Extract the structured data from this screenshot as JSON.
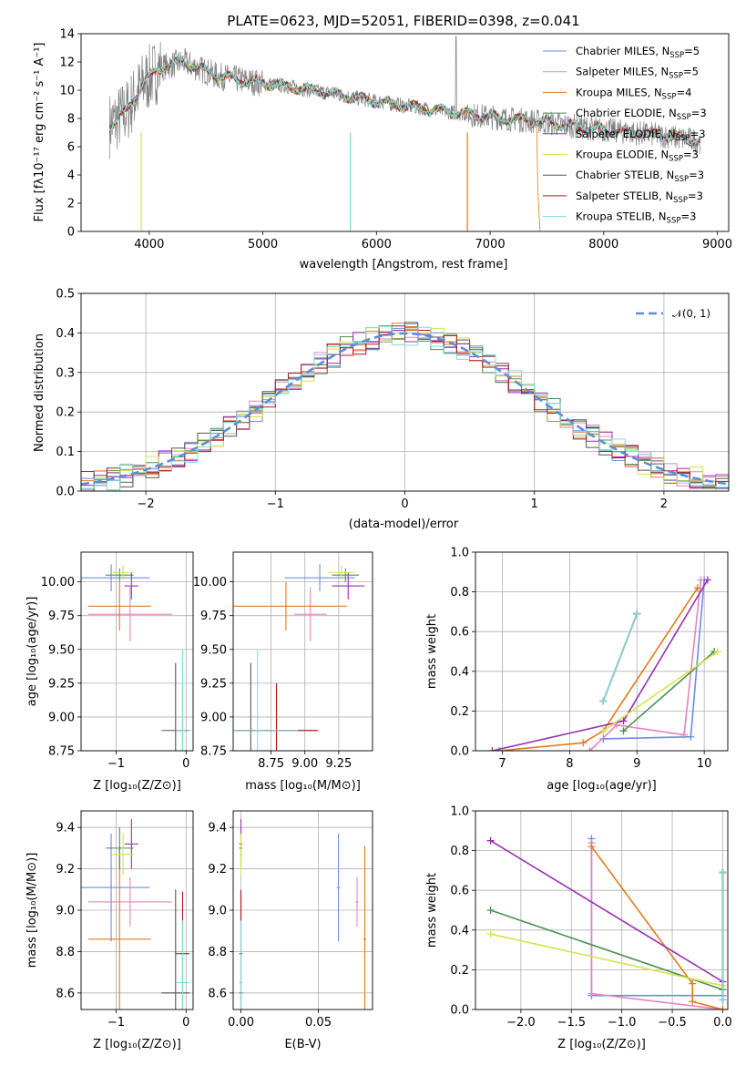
{
  "colors": [
    "#6a8fe0",
    "#e584c3",
    "#e07b1c",
    "#4a9150",
    "#9b2fb4",
    "#d6e34b",
    "#555555",
    "#b5161e",
    "#7fdcd8"
  ],
  "spectrum": {
    "title": "PLATE=0623, MJD=52051, FIBERID=0398, z=0.041",
    "xlabel": "wavelength [Angstrom, rest frame]",
    "ylabel": "Flux [fλ10⁻¹⁷ erg cm⁻² s⁻¹ A⁻¹]",
    "xlim": [
      3400,
      9100
    ],
    "ylim": [
      0,
      14
    ],
    "xticks": [
      "4000",
      "5000",
      "6000",
      "7000",
      "8000",
      "9000"
    ],
    "yticks": [
      "0",
      "2",
      "4",
      "6",
      "8",
      "10",
      "12",
      "14"
    ],
    "legend": [
      {
        "base": "Chabrier MILES, N",
        "sub": "SSP",
        "tail": "=5"
      },
      {
        "base": "Salpeter MILES, N",
        "sub": "SSP",
        "tail": "=5"
      },
      {
        "base": "Kroupa MILES, N",
        "sub": "SSP",
        "tail": "=4"
      },
      {
        "base": "Chabrier ELODIE, N",
        "sub": "SSP",
        "tail": "=3"
      },
      {
        "base": "Salpeter ELODIE, N",
        "sub": "SSP",
        "tail": "=3"
      },
      {
        "base": "Kroupa ELODIE, N",
        "sub": "SSP",
        "tail": "=3"
      },
      {
        "base": "Chabrier STELIB, N",
        "sub": "SSP",
        "tail": "=3"
      },
      {
        "base": "Salpeter STELIB, N",
        "sub": "SSP",
        "tail": "=3"
      },
      {
        "base": "Kroupa STELIB, N",
        "sub": "SSP",
        "tail": "=3"
      }
    ],
    "model_continuum": {
      "x": [
        3650,
        3800,
        3950,
        4100,
        4300,
        4600,
        4900,
        5200,
        5500,
        6000,
        6500,
        7000,
        7400,
        8000,
        8500,
        8850
      ],
      "y": [
        7.5,
        8.5,
        10.5,
        11.6,
        12.0,
        11.0,
        10.6,
        10.3,
        9.9,
        9.2,
        8.6,
        8.1,
        7.8,
        7.2,
        6.8,
        6.4
      ]
    }
  },
  "residuals": {
    "xlabel": "(data-model)/error",
    "ylabel": "Normed distribution",
    "xlim": [
      -2.5,
      2.5
    ],
    "ylim": [
      0,
      0.5
    ],
    "xticks": [
      "−2",
      "−1",
      "0",
      "1",
      "2"
    ],
    "yticks": [
      "0.0",
      "0.1",
      "0.2",
      "0.3",
      "0.4",
      "0.5"
    ],
    "legend_label": "𝒩(0, 1)",
    "gaussian": {
      "mean": 0,
      "sigma": 1
    }
  },
  "panel_age_Z": {
    "xlabel": "Z [log₁₀(Z/Z⊙)]",
    "ylabel": "age  [log₁₀(age/yr)]",
    "xlim": [
      -1.5,
      0.1
    ],
    "ylim": [
      8.75,
      10.22
    ],
    "xticks": [
      "−1",
      "0"
    ],
    "yticks": [
      "8.75",
      "9.00",
      "9.25",
      "9.50",
      "9.75",
      "10.00"
    ]
  },
  "panel_age_mass": {
    "xlabel": "mass [log₁₀(M/M⊙)]",
    "xlim": [
      8.47,
      9.5
    ],
    "ylim": [
      8.75,
      10.22
    ],
    "xticks": [
      "8.75",
      "9.00",
      "9.25"
    ],
    "yticks": [
      "8.75",
      "9.00",
      "9.25",
      "9.50",
      "9.75",
      "10.00"
    ]
  },
  "panel_weight_age": {
    "xlabel": "age  [log₁₀(age/yr)]",
    "ylabel": "mass weight",
    "xlim": [
      6.6,
      10.35
    ],
    "ylim": [
      0,
      1
    ],
    "xticks": [
      "7",
      "8",
      "9",
      "10"
    ],
    "yticks": [
      "0.0",
      "0.2",
      "0.4",
      "0.6",
      "0.8",
      "1.0"
    ]
  },
  "panel_mass_Z": {
    "xlabel": "Z [log₁₀(Z/Z⊙)]",
    "ylabel": "mass [log₁₀(M/M⊙)]",
    "xlim": [
      -1.5,
      0.1
    ],
    "ylim": [
      8.52,
      9.48
    ],
    "xticks": [
      "−1",
      "0"
    ],
    "yticks": [
      "8.6",
      "8.8",
      "9.0",
      "9.2",
      "9.4"
    ]
  },
  "panel_mass_ebv": {
    "xlabel": "E(B-V)",
    "xlim": [
      -0.005,
      0.085
    ],
    "ylim": [
      8.52,
      9.48
    ],
    "xticks": [
      "0.00",
      "0.05"
    ],
    "yticks": [
      "8.6",
      "8.8",
      "9.0",
      "9.2",
      "9.4"
    ]
  },
  "panel_weight_Z": {
    "xlabel": "Z [log₁₀(Z/Z⊙)]",
    "ylabel": "mass weight",
    "xlim": [
      -2.45,
      0.05
    ],
    "ylim": [
      0,
      1
    ],
    "xticks": [
      "−2.0",
      "−1.5",
      "−1.0",
      "−0.5",
      "0.0"
    ],
    "yticks": [
      "0.0",
      "0.2",
      "0.4",
      "0.6",
      "0.8",
      "1.0"
    ]
  },
  "chart_data": {
    "type": "line",
    "title": "PLATE=0623, MJD=52051, FIBERID=0398, z=0.041",
    "series": [
      {
        "name": "Chabrier MILES, N_SSP=5",
        "age_weight": [
          [
            8.5,
            0.06
          ],
          [
            9.8,
            0.07
          ],
          [
            10.0,
            0.86
          ]
        ],
        "Z_weight": [
          [
            -1.3,
            0.86
          ],
          [
            -1.3,
            0.07
          ],
          [
            0.0,
            0.07
          ]
        ],
        "age_mean": [
          10.03,
          0.1
        ],
        "Z_mean": [
          -1.07,
          0.55
        ],
        "mass_mean": [
          9.11,
          0.26
        ],
        "ebv": 0.063
      },
      {
        "name": "Salpeter MILES, N_SSP=5",
        "age_weight": [
          [
            8.3,
            0.0
          ],
          [
            8.7,
            0.13
          ],
          [
            9.7,
            0.08
          ],
          [
            9.95,
            0.86
          ]
        ],
        "Z_weight": [
          [
            -1.3,
            0.84
          ],
          [
            -1.3,
            0.08
          ],
          [
            0.0,
            0.0
          ]
        ],
        "age_mean": [
          9.76,
          0.2
        ],
        "Z_mean": [
          -0.8,
          0.6
        ],
        "mass_mean": [
          9.04,
          0.12
        ],
        "ebv": 0.075
      },
      {
        "name": "Kroupa MILES, N_SSP=4",
        "age_weight": [
          [
            6.95,
            0.0
          ],
          [
            8.2,
            0.04
          ],
          [
            8.5,
            0.1
          ],
          [
            9.9,
            0.82
          ]
        ],
        "Z_weight": [
          [
            -1.3,
            0.82
          ],
          [
            -0.3,
            0.13
          ],
          [
            -0.3,
            0.04
          ],
          [
            0.0,
            0.0
          ]
        ],
        "age_mean": [
          9.82,
          0.18
        ],
        "Z_mean": [
          -0.95,
          0.45
        ],
        "mass_mean": [
          8.86,
          0.45
        ],
        "ebv": 0.08
      },
      {
        "name": "Chabrier ELODIE, N_SSP=3",
        "age_weight": [
          [
            8.8,
            0.1
          ],
          [
            10.15,
            0.5
          ]
        ],
        "Z_weight": [
          [
            -2.3,
            0.5
          ],
          [
            0.0,
            0.1
          ]
        ],
        "age_mean": [
          10.05,
          0.05
        ],
        "Z_mean": [
          -0.95,
          0.2
        ],
        "mass_mean": [
          9.3,
          0.1
        ],
        "ebv": 0.0
      },
      {
        "name": "Salpeter ELODIE, N_SSP=3",
        "age_weight": [
          [
            6.85,
            0.0
          ],
          [
            8.8,
            0.15
          ],
          [
            10.05,
            0.86
          ]
        ],
        "Z_weight": [
          [
            -2.3,
            0.85
          ],
          [
            0.0,
            0.14
          ]
        ],
        "age_mean": [
          9.97,
          0.1
        ],
        "Z_mean": [
          -0.78,
          0.1
        ],
        "mass_mean": [
          9.32,
          0.12
        ],
        "ebv": 0.0
      },
      {
        "name": "Kroupa ELODIE, N_SSP=3",
        "age_weight": [
          [
            8.5,
            0.1
          ],
          [
            10.2,
            0.5
          ]
        ],
        "Z_weight": [
          [
            -2.3,
            0.38
          ],
          [
            0.0,
            0.12
          ]
        ],
        "age_mean": [
          10.07,
          0.05
        ],
        "Z_mean": [
          -0.9,
          0.15
        ],
        "mass_mean": [
          9.27,
          0.1
        ],
        "ebv": 0.0
      },
      {
        "name": "Chabrier STELIB, N_SSP=3",
        "age_weight": [
          [
            8.5,
            0.25
          ],
          [
            9.0,
            0.69
          ]
        ],
        "Z_weight": [
          [
            0.0,
            0.69
          ],
          [
            0.0,
            0.05
          ]
        ],
        "age_mean": [
          8.9,
          0.5
        ],
        "Z_mean": [
          -0.15,
          0.2
        ],
        "mass_mean": [
          8.6,
          0.5
        ],
        "ebv": 0.0
      },
      {
        "name": "Salpeter STELIB, N_SSP=3",
        "age_weight": [
          [
            8.5,
            0.25
          ],
          [
            9.0,
            0.69
          ]
        ],
        "Z_weight": [
          [
            0.0,
            0.69
          ],
          [
            0.0,
            0.05
          ]
        ],
        "age_mean": [
          8.9,
          0.35
        ],
        "Z_mean": [
          -0.05,
          0.1
        ],
        "mass_mean": [
          8.79,
          0.3
        ],
        "ebv": 0.0
      },
      {
        "name": "Kroupa STELIB, N_SSP=3",
        "age_weight": [
          [
            8.5,
            0.25
          ],
          [
            9.0,
            0.69
          ]
        ],
        "Z_weight": [
          [
            0.0,
            0.69
          ],
          [
            0.0,
            0.05
          ]
        ],
        "age_mean": [
          8.9,
          0.6
        ],
        "Z_mean": [
          -0.05,
          0.1
        ],
        "mass_mean": [
          8.65,
          0.3
        ],
        "ebv": 0.0
      }
    ]
  }
}
